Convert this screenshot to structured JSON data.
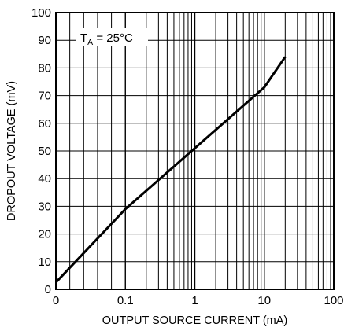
{
  "chart_data": {
    "type": "line",
    "title": "",
    "xlabel": "OUTPUT SOURCE CURRENT (mA)",
    "ylabel": "DROPOUT VOLTAGE (mV)",
    "x_scale": "log with zero at left",
    "xlim": [
      0,
      100
    ],
    "ylim": [
      0,
      100
    ],
    "x_ticks": [
      "0",
      "0.1",
      "1",
      "10",
      "100"
    ],
    "y_ticks": [
      "0",
      "10",
      "20",
      "30",
      "40",
      "50",
      "60",
      "70",
      "80",
      "90",
      "100"
    ],
    "grid": true,
    "annotation": {
      "main": "T",
      "sub": "A",
      "rest": " = 25°C"
    },
    "series": [
      {
        "x": [
          0,
          0.1,
          1,
          10,
          20
        ],
        "y": [
          2.5,
          29,
          51,
          73,
          84
        ]
      }
    ],
    "colors": {
      "line": "#000000",
      "grid": "#000000",
      "background": "#ffffff"
    }
  }
}
